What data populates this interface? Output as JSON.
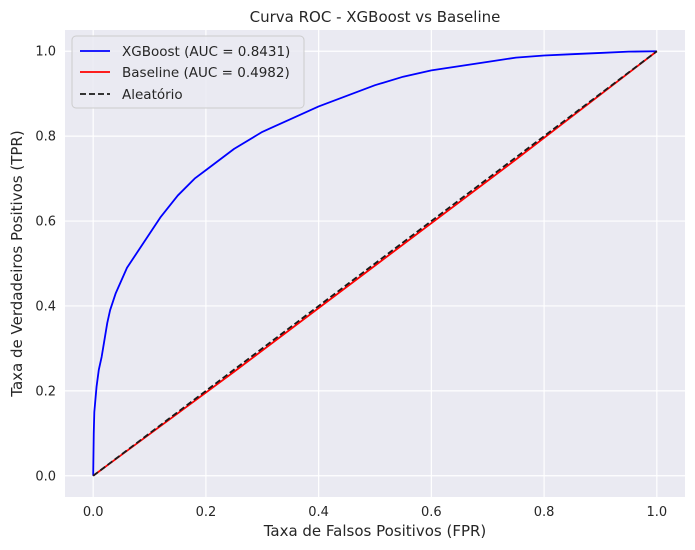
{
  "chart_data": {
    "type": "line",
    "title": "Curva ROC - XGBoost vs Baseline",
    "xlabel": "Taxa de Falsos Positivos (FPR)",
    "ylabel": "Taxa de Verdadeiros Positivos (TPR)",
    "xlim": [
      -0.05,
      1.05
    ],
    "ylim": [
      -0.05,
      1.05
    ],
    "xticks": [
      0.0,
      0.2,
      0.4,
      0.6,
      0.8,
      1.0
    ],
    "yticks": [
      0.0,
      0.2,
      0.4,
      0.6,
      0.8,
      1.0
    ],
    "xtick_labels": [
      "0.0",
      "0.2",
      "0.4",
      "0.6",
      "0.8",
      "1.0"
    ],
    "ytick_labels": [
      "0.0",
      "0.2",
      "0.4",
      "0.6",
      "0.8",
      "1.0"
    ],
    "grid": true,
    "legend_position": "top-left",
    "series": [
      {
        "name": "XGBoost (AUC = 0.8431)",
        "color": "#0000ff",
        "dash": "solid",
        "x": [
          0,
          0.001,
          0.002,
          0.004,
          0.006,
          0.01,
          0.015,
          0.02,
          0.025,
          0.03,
          0.04,
          0.05,
          0.06,
          0.07,
          0.08,
          0.1,
          0.12,
          0.15,
          0.18,
          0.2,
          0.25,
          0.3,
          0.35,
          0.4,
          0.45,
          0.5,
          0.55,
          0.6,
          0.65,
          0.7,
          0.75,
          0.8,
          0.85,
          0.9,
          0.95,
          1.0
        ],
        "y": [
          0,
          0.1,
          0.15,
          0.18,
          0.21,
          0.25,
          0.28,
          0.32,
          0.36,
          0.39,
          0.43,
          0.46,
          0.49,
          0.51,
          0.53,
          0.57,
          0.61,
          0.66,
          0.7,
          0.72,
          0.77,
          0.81,
          0.84,
          0.87,
          0.895,
          0.92,
          0.94,
          0.955,
          0.965,
          0.975,
          0.985,
          0.99,
          0.993,
          0.996,
          0.999,
          1.0
        ]
      },
      {
        "name": "Baseline (AUC = 0.4982)",
        "color": "#ff0000",
        "dash": "solid",
        "x": [
          0,
          0.25,
          0.5,
          0.75,
          1.0
        ],
        "y": [
          0,
          0.245,
          0.495,
          0.745,
          1.0
        ]
      },
      {
        "name": "Aleatório",
        "color": "#1a1a1a",
        "dash": "dashed",
        "x": [
          0,
          1
        ],
        "y": [
          0,
          1
        ]
      }
    ]
  }
}
